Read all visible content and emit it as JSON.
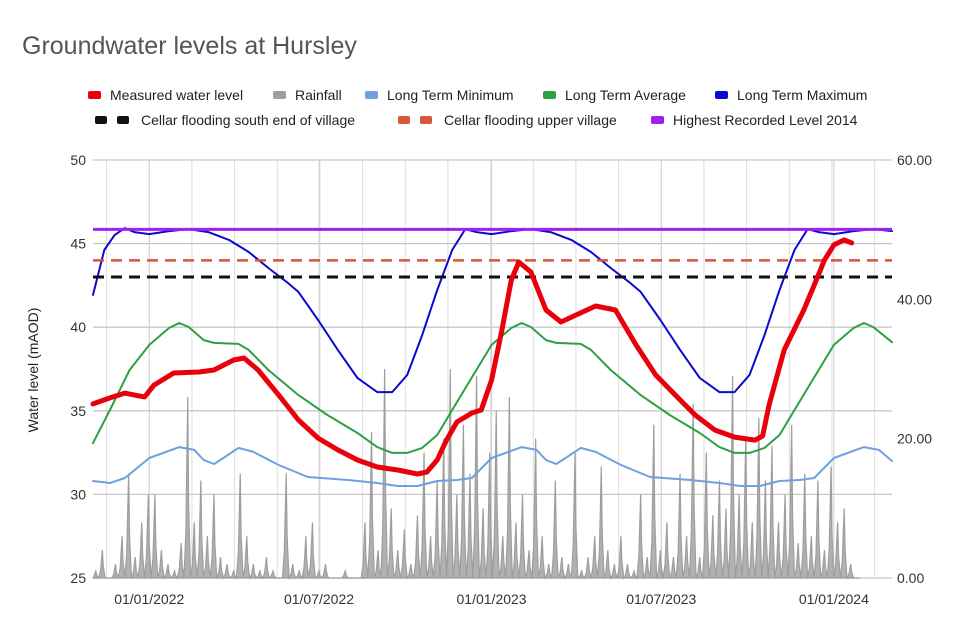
{
  "chart_data": {
    "type": "line",
    "title": "Groundwater levels at Hursley",
    "x_unit": "days since 01/01/2022",
    "xlim": [
      -60,
      792
    ],
    "x_ticks": [
      {
        "day": 0,
        "label": "01/01/2022"
      },
      {
        "day": 181,
        "label": "01/07/2022"
      },
      {
        "day": 365,
        "label": "01/01/2023"
      },
      {
        "day": 546,
        "label": "01/07/2023"
      },
      {
        "day": 730,
        "label": "01/01/2024"
      }
    ],
    "ylabel": "Water level (mAOD)",
    "ylim": [
      25,
      50
    ],
    "y_ticks": [
      "25",
      "30",
      "35",
      "40",
      "45",
      "50"
    ],
    "y2lim": [
      0,
      60
    ],
    "y2_ticks": [
      "0.00",
      "20.00",
      "40.00",
      "60.00"
    ],
    "grid": true,
    "legend_position": "top",
    "colors": {
      "measured": "#e8000b",
      "rainfall": "#9e9e9e",
      "min": "#6fa0e0",
      "avg": "#2ea043",
      "max": "#0a0ad0",
      "cellar_south": "#111111",
      "cellar_upper": "#d9553a",
      "highest": "#a020f0"
    },
    "legend": [
      "Measured water level",
      "Rainfall",
      "Long Term Minimum",
      "Long Term Average",
      "Long Term Maximum",
      "Cellar flooding south end of village",
      "Cellar flooding upper village",
      "Highest Recorded Level 2014"
    ],
    "series": [
      {
        "name": "Measured water level",
        "axis": "left",
        "points": [
          [
            -60,
            35.41
          ],
          [
            -42,
            35.77
          ],
          [
            -26,
            36.06
          ],
          [
            -11,
            35.89
          ],
          [
            -5,
            35.83
          ],
          [
            5,
            36.54
          ],
          [
            26,
            37.26
          ],
          [
            53,
            37.32
          ],
          [
            69,
            37.44
          ],
          [
            90,
            38.04
          ],
          [
            101,
            38.16
          ],
          [
            116,
            37.44
          ],
          [
            138,
            35.94
          ],
          [
            159,
            34.45
          ],
          [
            180,
            33.37
          ],
          [
            201,
            32.66
          ],
          [
            222,
            32.06
          ],
          [
            243,
            31.64
          ],
          [
            265,
            31.46
          ],
          [
            286,
            31.22
          ],
          [
            296,
            31.34
          ],
          [
            307,
            32.06
          ],
          [
            317,
            33.25
          ],
          [
            328,
            34.33
          ],
          [
            344,
            34.87
          ],
          [
            354,
            35.05
          ],
          [
            365,
            36.84
          ],
          [
            376,
            39.83
          ],
          [
            386,
            42.82
          ],
          [
            394,
            43.9
          ],
          [
            407,
            43.3
          ],
          [
            423,
            41.03
          ],
          [
            439,
            40.31
          ],
          [
            455,
            40.73
          ],
          [
            476,
            41.27
          ],
          [
            497,
            41.03
          ],
          [
            519,
            38.94
          ],
          [
            540,
            37.14
          ],
          [
            561,
            35.94
          ],
          [
            582,
            34.75
          ],
          [
            603,
            33.85
          ],
          [
            624,
            33.43
          ],
          [
            646,
            33.25
          ],
          [
            654,
            33.49
          ],
          [
            661,
            35.35
          ],
          [
            677,
            38.64
          ],
          [
            698,
            41.03
          ],
          [
            709,
            42.52
          ],
          [
            720,
            44.02
          ],
          [
            730,
            44.92
          ],
          [
            741,
            45.22
          ],
          [
            749,
            45.04
          ]
        ]
      },
      {
        "name": "Long Term Minimum",
        "axis": "left",
        "points": [
          [
            -60,
            30.8
          ],
          [
            -42,
            30.68
          ],
          [
            -26,
            30.98
          ],
          [
            0,
            32.18
          ],
          [
            32,
            32.83
          ],
          [
            48,
            32.66
          ],
          [
            58,
            32.06
          ],
          [
            69,
            31.82
          ],
          [
            79,
            32.18
          ],
          [
            95,
            32.78
          ],
          [
            111,
            32.54
          ],
          [
            138,
            31.76
          ],
          [
            169,
            31.04
          ],
          [
            212,
            30.86
          ],
          [
            243,
            30.68
          ],
          [
            265,
            30.5
          ],
          [
            286,
            30.5
          ],
          [
            307,
            30.8
          ],
          [
            328,
            30.86
          ],
          [
            344,
            30.98
          ],
          [
            365,
            32.18
          ],
          [
            397,
            32.83
          ],
          [
            413,
            32.66
          ],
          [
            423,
            32.06
          ],
          [
            434,
            31.82
          ],
          [
            444,
            32.18
          ],
          [
            460,
            32.78
          ],
          [
            476,
            32.54
          ],
          [
            503,
            31.76
          ],
          [
            534,
            31.04
          ],
          [
            577,
            30.86
          ],
          [
            608,
            30.68
          ],
          [
            630,
            30.5
          ],
          [
            651,
            30.5
          ],
          [
            672,
            30.8
          ],
          [
            693,
            30.86
          ],
          [
            709,
            30.98
          ],
          [
            730,
            32.18
          ],
          [
            762,
            32.83
          ],
          [
            778,
            32.66
          ],
          [
            792,
            32.0
          ]
        ]
      },
      {
        "name": "Long Term Average",
        "axis": "left",
        "points": [
          [
            -60,
            33.07
          ],
          [
            -42,
            35.05
          ],
          [
            -21,
            37.44
          ],
          [
            0,
            38.94
          ],
          [
            21,
            39.95
          ],
          [
            32,
            40.25
          ],
          [
            42,
            40.01
          ],
          [
            58,
            39.23
          ],
          [
            69,
            39.06
          ],
          [
            95,
            39.0
          ],
          [
            106,
            38.64
          ],
          [
            127,
            37.44
          ],
          [
            159,
            35.94
          ],
          [
            190,
            34.75
          ],
          [
            222,
            33.67
          ],
          [
            243,
            32.83
          ],
          [
            259,
            32.48
          ],
          [
            275,
            32.48
          ],
          [
            291,
            32.78
          ],
          [
            307,
            33.55
          ],
          [
            323,
            35.05
          ],
          [
            339,
            36.54
          ],
          [
            365,
            38.94
          ],
          [
            386,
            39.95
          ],
          [
            397,
            40.25
          ],
          [
            407,
            40.01
          ],
          [
            423,
            39.23
          ],
          [
            434,
            39.06
          ],
          [
            460,
            39.0
          ],
          [
            471,
            38.64
          ],
          [
            492,
            37.44
          ],
          [
            524,
            35.94
          ],
          [
            555,
            34.75
          ],
          [
            587,
            33.67
          ],
          [
            608,
            32.83
          ],
          [
            624,
            32.48
          ],
          [
            640,
            32.48
          ],
          [
            656,
            32.78
          ],
          [
            672,
            33.55
          ],
          [
            688,
            35.05
          ],
          [
            704,
            36.54
          ],
          [
            730,
            38.94
          ],
          [
            751,
            39.95
          ],
          [
            762,
            40.25
          ],
          [
            772,
            40.01
          ],
          [
            792,
            39.1
          ]
        ]
      },
      {
        "name": "Long Term Maximum",
        "axis": "left",
        "points": [
          [
            -60,
            41.93
          ],
          [
            -48,
            44.62
          ],
          [
            -37,
            45.51
          ],
          [
            -26,
            45.93
          ],
          [
            -16,
            45.69
          ],
          [
            0,
            45.57
          ],
          [
            21,
            45.75
          ],
          [
            42,
            45.87
          ],
          [
            63,
            45.69
          ],
          [
            85,
            45.22
          ],
          [
            106,
            44.5
          ],
          [
            127,
            43.54
          ],
          [
            148,
            42.64
          ],
          [
            159,
            42.11
          ],
          [
            180,
            40.43
          ],
          [
            201,
            38.64
          ],
          [
            222,
            36.96
          ],
          [
            243,
            36.12
          ],
          [
            259,
            36.12
          ],
          [
            275,
            37.14
          ],
          [
            291,
            39.53
          ],
          [
            307,
            42.22
          ],
          [
            323,
            44.62
          ],
          [
            337,
            45.87
          ],
          [
            349,
            45.69
          ],
          [
            365,
            45.57
          ],
          [
            386,
            45.75
          ],
          [
            407,
            45.87
          ],
          [
            428,
            45.69
          ],
          [
            450,
            45.22
          ],
          [
            471,
            44.5
          ],
          [
            492,
            43.54
          ],
          [
            513,
            42.64
          ],
          [
            524,
            42.11
          ],
          [
            545,
            40.43
          ],
          [
            566,
            38.64
          ],
          [
            587,
            36.96
          ],
          [
            608,
            36.12
          ],
          [
            624,
            36.12
          ],
          [
            640,
            37.14
          ],
          [
            656,
            39.53
          ],
          [
            672,
            42.22
          ],
          [
            688,
            44.62
          ],
          [
            702,
            45.87
          ],
          [
            714,
            45.69
          ],
          [
            730,
            45.57
          ],
          [
            751,
            45.75
          ],
          [
            772,
            45.87
          ],
          [
            792,
            45.75
          ]
        ]
      },
      {
        "name": "Cellar flooding south end of village",
        "axis": "left",
        "constant": 43,
        "dashed": true
      },
      {
        "name": "Cellar flooding upper village",
        "axis": "left",
        "constant": 44,
        "dashed": true
      },
      {
        "name": "Highest Recorded Level 2014",
        "axis": "left",
        "constant": 45.85
      },
      {
        "name": "Rainfall",
        "axis": "right",
        "start_day": -60,
        "step_days": 7,
        "values": [
          1,
          4,
          0,
          2,
          6,
          15,
          3,
          8,
          12,
          12,
          4,
          2,
          1,
          5,
          26,
          8,
          14,
          6,
          12,
          3,
          2,
          1,
          15,
          6,
          2,
          1,
          3,
          1,
          0,
          15,
          2,
          1,
          6,
          8,
          1,
          2,
          0,
          0,
          1,
          0,
          0,
          8,
          21,
          4,
          30,
          10,
          4,
          7,
          2,
          9,
          18,
          6,
          14,
          20,
          30,
          12,
          22,
          15,
          29,
          10,
          18,
          24,
          6,
          26,
          8,
          12,
          4,
          20,
          6,
          2,
          14,
          3,
          2,
          18,
          1,
          3,
          6,
          16,
          4,
          2,
          6,
          2,
          1,
          12,
          3,
          22,
          4,
          8,
          3,
          15,
          6,
          25,
          3,
          18,
          9,
          14,
          10,
          29,
          12,
          20,
          8,
          23,
          14,
          19,
          8,
          12,
          22,
          5,
          15,
          6,
          14,
          4,
          16,
          8,
          10,
          2,
          0
        ]
      }
    ]
  }
}
